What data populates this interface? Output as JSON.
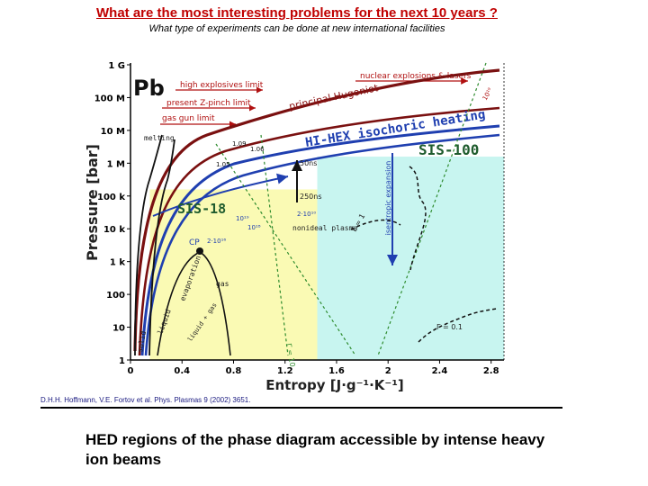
{
  "title": "What are the most interesting problems for the next 10 years ?",
  "subtitle": "What type of experiments can be done at new  international facilities",
  "caption": "HED regions of the phase diagram accessible by intense heavy ion beams",
  "credit": "D.H.H. Hoffmann, V.E. Fortov et al. Phys. Plasmas 9 (2002) 3651.",
  "colors": {
    "title": "#c00000",
    "yellow_region": "#fafab4",
    "cyan_region": "#c8f5f0",
    "dark_red": "#7a1010",
    "blue": "#1f3fb0",
    "green_dotted": "#2e8b2e",
    "sis_green": "#1f5c2e",
    "label_red": "#b01010"
  },
  "chart_data": {
    "type": "diagram",
    "element_label": "Pb",
    "xlabel": "Entropy  [J·g⁻¹·K⁻¹]",
    "ylabel": "Pressure  [bar]",
    "xlim": [
      0,
      2.9
    ],
    "ylim_log10": [
      0,
      9
    ],
    "x_ticks": [
      "0",
      "0.4",
      "0.8",
      "1.2",
      "1.6",
      "2",
      "2.4",
      "2.8"
    ],
    "x_tick_values": [
      0,
      0.4,
      0.8,
      1.2,
      1.6,
      2.0,
      2.4,
      2.8
    ],
    "y_ticks": [
      "1",
      "10",
      "100",
      "1 k",
      "10 k",
      "100 k",
      "1 M",
      "10 M",
      "100 M",
      "1 G"
    ],
    "y_tick_log10": [
      0,
      1,
      2,
      3,
      4,
      5,
      6,
      7,
      8,
      9
    ],
    "regions": [
      {
        "name": "yellow",
        "x": [
          0.15,
          1.45
        ],
        "y_log10": [
          0,
          5.2
        ]
      },
      {
        "name": "cyan",
        "x": [
          1.45,
          2.9
        ],
        "y_log10": [
          0,
          6.2
        ]
      }
    ],
    "labels": {
      "nuclear": "nuclear explosions & lasers",
      "high_explosives": "high explosives limit",
      "z_pinch": "present Z-pinch limit",
      "gas_gun": "gas gun limit",
      "hugoniot": "principal Hugoniot",
      "hi_hex": "HI-HEX isochoric heating",
      "sis100": "SIS-100",
      "sis18": "SIS-18",
      "melting": "melting",
      "cp": "CP",
      "gas": "gas",
      "liquid": "liquid",
      "solid": "solid",
      "evaporation": "evaporation",
      "liquid_gas": "liquid + gas",
      "nonideal": "nonideal plasma",
      "isentropic": "isentropic expansion",
      "t50": "50ns",
      "t250": "250ns",
      "gamma_01": "Γ = 0.1",
      "gamma_1": "Γ = 1",
      "gamma_10": "Γ = 10",
      "n2e16": "2·10¹⁶",
      "n2e10": "2·10¹⁰",
      "n1e18": "10¹⁸",
      "n1e19": "10¹⁹",
      "n1e19b": "10¹⁹",
      "t_09": "1.09",
      "t_06": "1.06",
      "t_05": "1.05"
    }
  }
}
